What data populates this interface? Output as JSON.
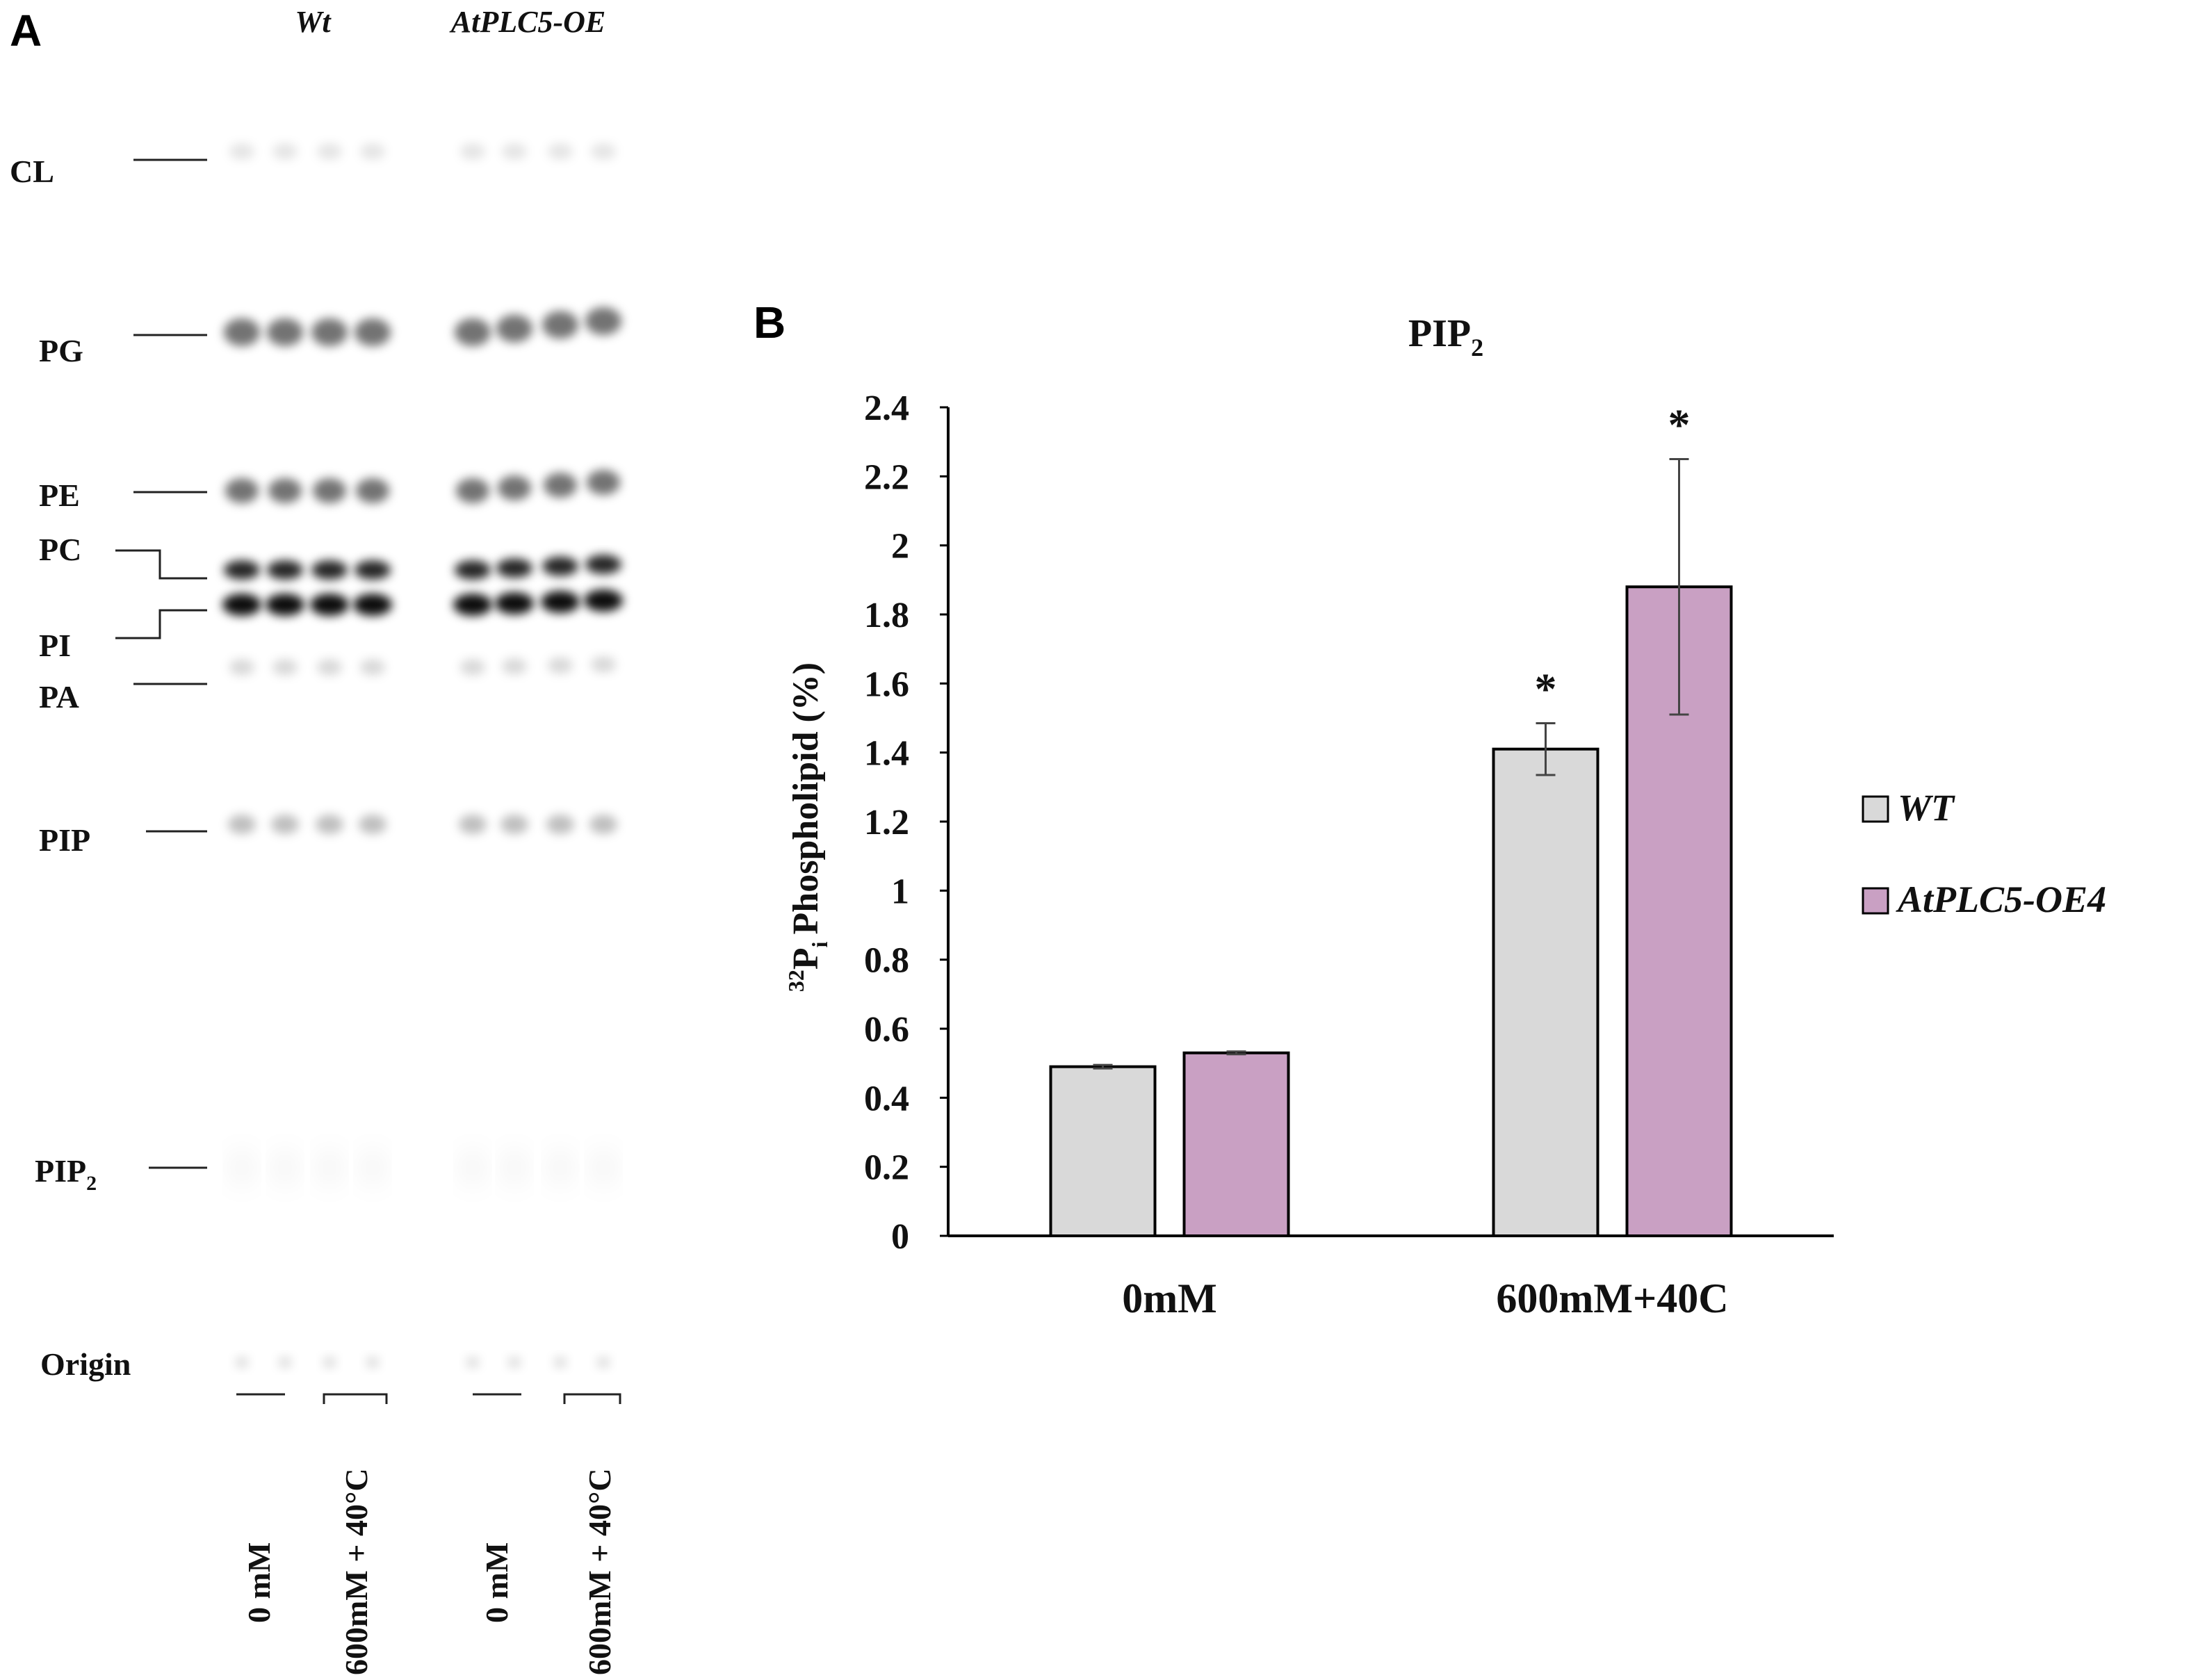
{
  "panel_a": {
    "letter": "A",
    "group_labels": [
      "Wt",
      "AtPLC5-OE"
    ],
    "lipid_labels": [
      {
        "name": "CL",
        "sub": ""
      },
      {
        "name": "PG",
        "sub": ""
      },
      {
        "name": "PE",
        "sub": ""
      },
      {
        "name": "PC",
        "sub": ""
      },
      {
        "name": "PI",
        "sub": ""
      },
      {
        "name": "PA",
        "sub": ""
      },
      {
        "name": "PIP",
        "sub": ""
      },
      {
        "name": "PIP",
        "sub": "2"
      },
      {
        "name": "Origin",
        "sub": ""
      }
    ],
    "lane_conditions": [
      "0 mM",
      "600mM + 40°C",
      "0 mM",
      "600mM + 40°C"
    ]
  },
  "panel_b": {
    "letter": "B",
    "colors": {
      "wt": "#d9d9d9",
      "oe": "#c9a0c3",
      "axis": "#000000",
      "error": "#444444"
    },
    "chart_data": {
      "type": "bar",
      "title": "PIP",
      "title_sub": "2",
      "ylabel_sup": "32",
      "ylabel_p": "P",
      "ylabel_sub": "i",
      "ylabel_rest": "Phospholipid (%)",
      "categories": [
        "0mM",
        "600mM+40C"
      ],
      "series": [
        {
          "name": "WT",
          "values": [
            0.49,
            1.41
          ],
          "errors": [
            0.005,
            0.075
          ],
          "sig": [
            "",
            "*"
          ]
        },
        {
          "name": "AtPLC5-OE4",
          "values": [
            0.53,
            1.88
          ],
          "errors": [
            0.004,
            0.37
          ],
          "sig": [
            "",
            "*"
          ]
        }
      ],
      "ylim": [
        0,
        2.4
      ],
      "yticks": [
        "0",
        "0.2",
        "0.4",
        "0.6",
        "0.8",
        "1",
        "1.2",
        "1.4",
        "1.6",
        "1.8",
        "2",
        "2.2",
        "2.4"
      ],
      "legend_position": "right",
      "grid": false
    }
  }
}
